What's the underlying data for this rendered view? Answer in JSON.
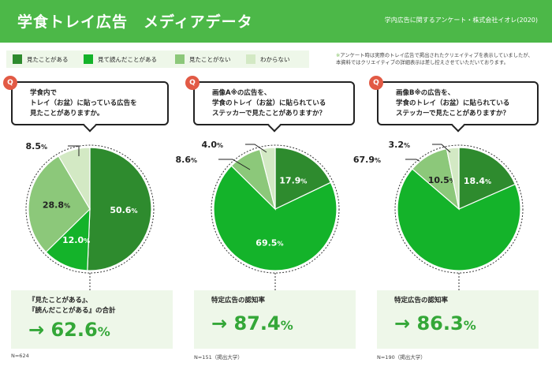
{
  "header": {
    "title": "学食トレイ広告　メディアデータ",
    "source": "学内広告に関するアンケート・株式会社イオレ(2020)"
  },
  "legend": [
    {
      "label": "見たことがある",
      "color": "#2e8b2e"
    },
    {
      "label": "見て読んだことがある",
      "color": "#14b32a"
    },
    {
      "label": "見たことがない",
      "color": "#8cc87a"
    },
    {
      "label": "わからない",
      "color": "#d3e9c4"
    }
  ],
  "note": {
    "mark": "※",
    "line1": "アンケート時は実際のトレイ広告で掲出されたクリエイティブを表示していましたが、",
    "line2": "本資料ではクリエイティブの詳細表示は差し控えさせていただいております。"
  },
  "q_badge": "Q",
  "charts": [
    {
      "question": [
        "学食内で",
        "トレイ（お盆）に貼っている広告を",
        "見たことがありますか。"
      ],
      "summary": [
        "『見たことがある』、",
        "『読んだことがある』の合計"
      ],
      "big": "→ 62.6",
      "big_unit": "%",
      "footnote": "N=624"
    },
    {
      "question": [
        "画像A※の広告を、",
        "学食のトレイ（お盆）に貼られている",
        "ステッカーで見たことがありますか？"
      ],
      "summary": [
        "特定広告の認知率"
      ],
      "big": "→ 87.4",
      "big_unit": "%",
      "footnote": "N=151（掲出大学）"
    },
    {
      "question": [
        "画像B※の広告を、",
        "学食のトレイ（お盆）に貼られている",
        "ステッカーで見たことがありますか？"
      ],
      "summary": [
        "特定広告の認知率"
      ],
      "big": "→ 86.3",
      "big_unit": "%",
      "footnote": "N=190（掲出大学）"
    }
  ],
  "chart_data": [
    {
      "type": "pie",
      "categories": [
        "見たことがある",
        "見て読んだことがある",
        "見たことがない",
        "わからない"
      ],
      "values": [
        50.6,
        12.0,
        28.8,
        8.5
      ],
      "labels": [
        "50.6",
        "12.0",
        "28.8",
        "8.5"
      ],
      "unit": "%"
    },
    {
      "type": "pie",
      "categories": [
        "見たことがある",
        "見て読んだことがある",
        "見たことがない",
        "わからない"
      ],
      "values": [
        17.9,
        69.5,
        8.6,
        4.0
      ],
      "labels": [
        "17.9",
        "69.5",
        "8.6",
        "4.0"
      ],
      "unit": "%"
    },
    {
      "type": "pie",
      "categories": [
        "見たことがある",
        "見て読んだことがある",
        "見たことがない",
        "わからない"
      ],
      "values": [
        18.4,
        67.9,
        10.5,
        3.2
      ],
      "labels": [
        "18.4",
        "67.9",
        "10.5",
        "3.2"
      ],
      "unit": "%"
    }
  ]
}
